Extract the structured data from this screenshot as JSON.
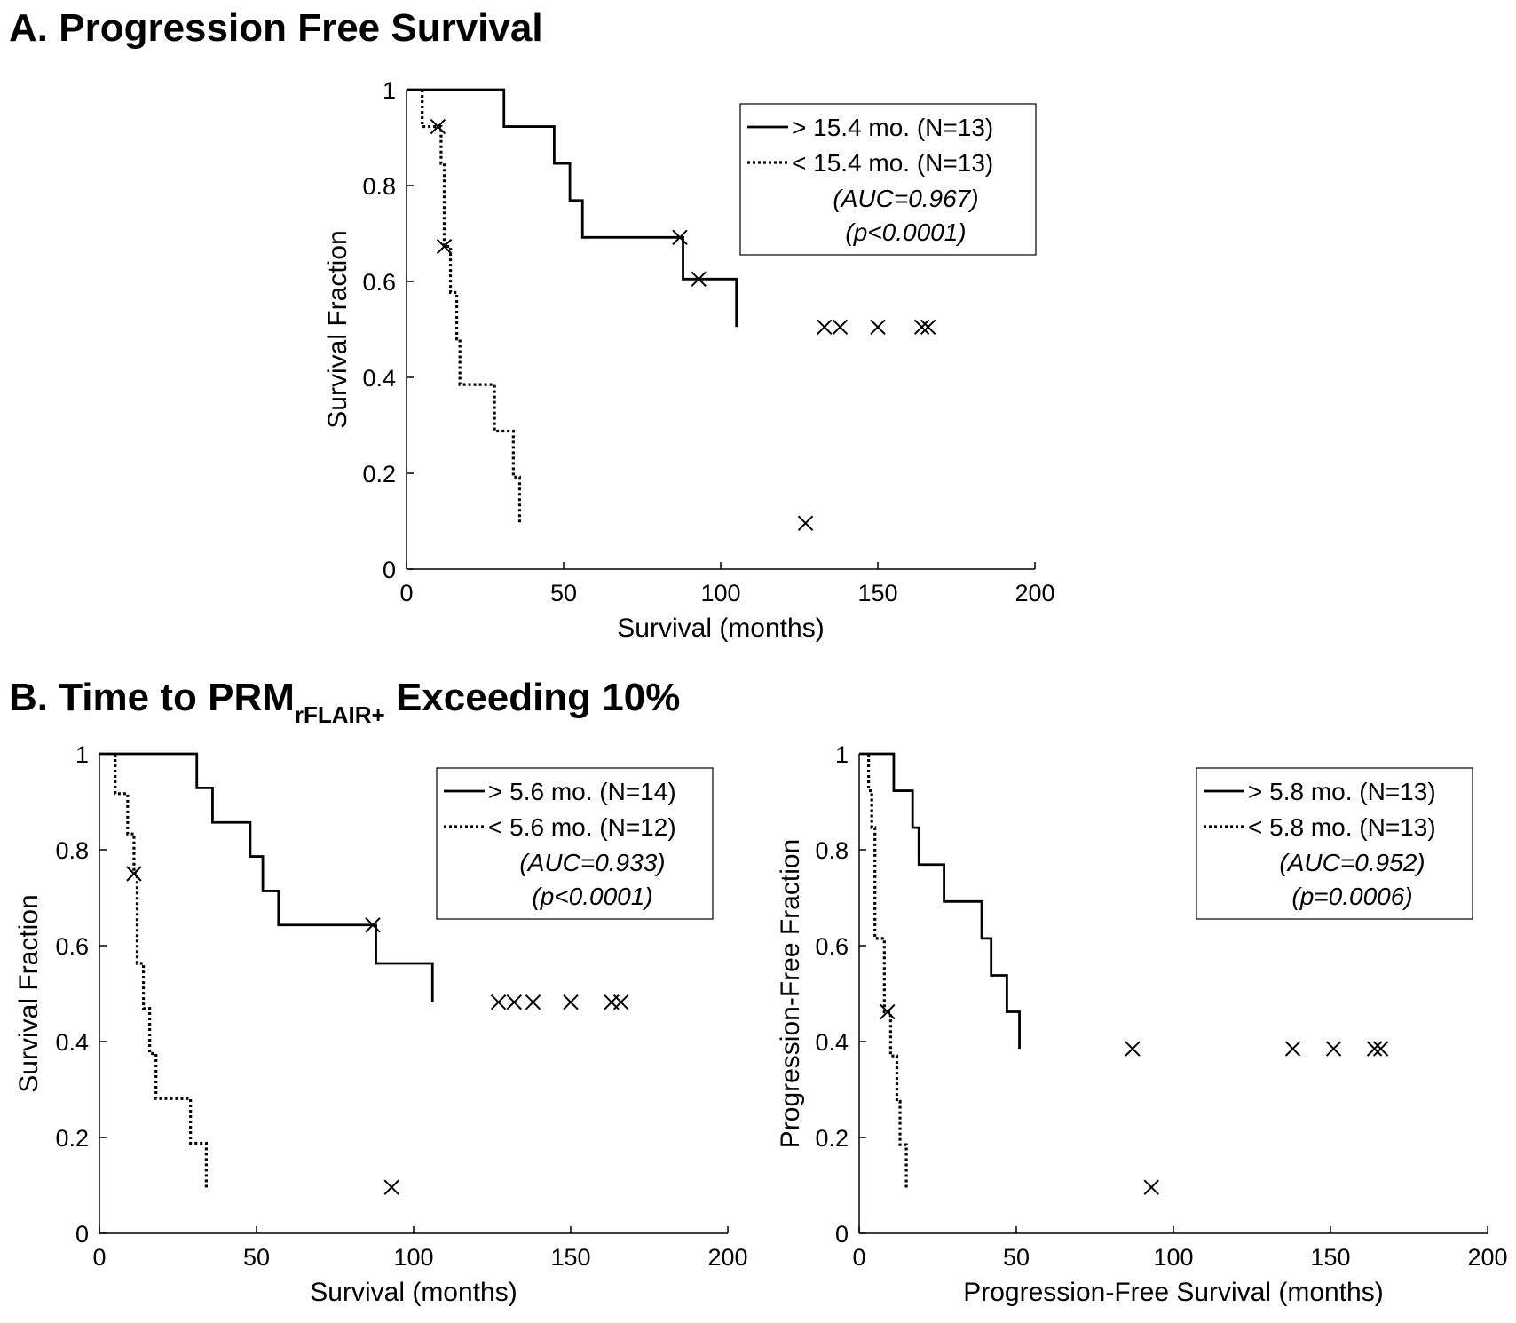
{
  "figure": {
    "panel_a_title": "A. Progression Free Survival",
    "panel_b_title_main": "B. Time to PRM",
    "panel_b_title_sub": "rFLAIR+",
    "panel_b_title_end": " Exceeding 10%"
  },
  "chart_data": [
    {
      "id": "A",
      "type": "line",
      "subtype": "kaplan-meier",
      "title": "A. Progression Free Survival",
      "xlabel": "Survival (months)",
      "ylabel": "Survival Fraction",
      "xlim": [
        0,
        200
      ],
      "ylim": [
        0,
        1
      ],
      "xticks": [
        "0",
        "50",
        "100",
        "150",
        "200"
      ],
      "yticks": [
        "0",
        "0.2",
        "0.4",
        "0.6",
        "0.8",
        "1"
      ],
      "legend_position": "top-right",
      "annotations": [
        "(AUC=0.967)",
        "(p<0.0001)"
      ],
      "series": [
        {
          "name": "> 15.4 mo. (N=13)",
          "style": "solid",
          "steps": [
            [
              0,
              1.0
            ],
            [
              31,
              0.923
            ],
            [
              47,
              0.846
            ],
            [
              52,
              0.769
            ],
            [
              56,
              0.692
            ],
            [
              88,
              0.692
            ],
            [
              88,
              0.605
            ],
            [
              105,
              0.605
            ],
            [
              105,
              0.505
            ]
          ],
          "censored": [
            [
              87,
              0.692
            ],
            [
              93,
              0.605
            ],
            [
              127,
              0.096
            ],
            [
              133,
              0.505
            ],
            [
              138,
              0.505
            ],
            [
              150,
              0.505
            ],
            [
              164,
              0.505
            ],
            [
              166,
              0.505
            ]
          ]
        },
        {
          "name": "< 15.4 mo. (N=13)",
          "style": "dotted",
          "steps": [
            [
              5,
              1.0
            ],
            [
              5,
              0.923
            ],
            [
              11,
              0.923
            ],
            [
              11,
              0.846
            ],
            [
              12,
              0.846
            ],
            [
              12,
              0.673
            ],
            [
              14,
              0.673
            ],
            [
              14,
              0.577
            ],
            [
              16,
              0.577
            ],
            [
              16,
              0.48
            ],
            [
              17,
              0.48
            ],
            [
              17,
              0.385
            ],
            [
              28,
              0.385
            ],
            [
              28,
              0.288
            ],
            [
              34,
              0.288
            ],
            [
              34,
              0.192
            ],
            [
              36,
              0.192
            ],
            [
              36,
              0.096
            ]
          ],
          "censored": [
            [
              10,
              0.923
            ],
            [
              12,
              0.673
            ]
          ]
        }
      ]
    },
    {
      "id": "B-left",
      "type": "line",
      "subtype": "kaplan-meier",
      "title": "B. Time to PRM rFLAIR+ Exceeding 10%",
      "xlabel": "Survival (months)",
      "ylabel": "Survival Fraction",
      "xlim": [
        0,
        200
      ],
      "ylim": [
        0,
        1
      ],
      "xticks": [
        "0",
        "50",
        "100",
        "150",
        "200"
      ],
      "yticks": [
        "0",
        "0.2",
        "0.4",
        "0.6",
        "0.8",
        "1"
      ],
      "legend_position": "top-right",
      "annotations": [
        "(AUC=0.933)",
        "(p<0.0001)"
      ],
      "series": [
        {
          "name": "> 5.6 mo. (N=14)",
          "style": "solid",
          "steps": [
            [
              0,
              1.0
            ],
            [
              31,
              0.929
            ],
            [
              36,
              0.857
            ],
            [
              48,
              0.786
            ],
            [
              52,
              0.714
            ],
            [
              57,
              0.643
            ],
            [
              88,
              0.643
            ],
            [
              88,
              0.563
            ],
            [
              106,
              0.563
            ],
            [
              106,
              0.482
            ]
          ],
          "censored": [
            [
              87,
              0.643
            ],
            [
              93,
              0.096
            ],
            [
              127,
              0.482
            ],
            [
              132,
              0.482
            ],
            [
              138,
              0.482
            ],
            [
              150,
              0.482
            ],
            [
              163,
              0.482
            ],
            [
              166,
              0.482
            ]
          ]
        },
        {
          "name": "< 5.6 mo. (N=12)",
          "style": "dotted",
          "steps": [
            [
              5,
              1.0
            ],
            [
              5,
              0.917
            ],
            [
              9,
              0.917
            ],
            [
              9,
              0.833
            ],
            [
              11,
              0.833
            ],
            [
              11,
              0.75
            ],
            [
              12,
              0.75
            ],
            [
              12,
              0.563
            ],
            [
              14,
              0.563
            ],
            [
              14,
              0.469
            ],
            [
              16,
              0.469
            ],
            [
              16,
              0.375
            ],
            [
              18,
              0.375
            ],
            [
              18,
              0.281
            ],
            [
              29,
              0.281
            ],
            [
              29,
              0.188
            ],
            [
              34,
              0.188
            ],
            [
              34,
              0.094
            ]
          ],
          "censored": [
            [
              11,
              0.75
            ]
          ]
        }
      ]
    },
    {
      "id": "B-right",
      "type": "line",
      "subtype": "kaplan-meier",
      "title": "B. Time to PRM rFLAIR+ Exceeding 10%",
      "xlabel": "Progression-Free Survival (months)",
      "ylabel": "Progression-Free Fraction",
      "xlim": [
        0,
        200
      ],
      "ylim": [
        0,
        1
      ],
      "xticks": [
        "0",
        "50",
        "100",
        "150",
        "200"
      ],
      "yticks": [
        "0",
        "0.2",
        "0.4",
        "0.6",
        "0.8",
        "1"
      ],
      "legend_position": "top-right",
      "annotations": [
        "(AUC=0.952)",
        "(p=0.0006)"
      ],
      "series": [
        {
          "name": "> 5.8 mo. (N=13)",
          "style": "solid",
          "steps": [
            [
              0,
              1.0
            ],
            [
              11,
              0.923
            ],
            [
              17,
              0.846
            ],
            [
              19,
              0.769
            ],
            [
              27,
              0.692
            ],
            [
              39,
              0.615
            ],
            [
              42,
              0.538
            ],
            [
              47,
              0.462
            ],
            [
              51,
              0.462
            ],
            [
              51,
              0.385
            ]
          ],
          "censored": [
            [
              87,
              0.385
            ],
            [
              93,
              0.096
            ],
            [
              138,
              0.385
            ],
            [
              151,
              0.385
            ],
            [
              164,
              0.385
            ],
            [
              166,
              0.385
            ]
          ]
        },
        {
          "name": "< 5.8 mo. (N=13)",
          "style": "dotted",
          "steps": [
            [
              3,
              1.0
            ],
            [
              3,
              0.923
            ],
            [
              4,
              0.923
            ],
            [
              4,
              0.846
            ],
            [
              5,
              0.846
            ],
            [
              5,
              0.615
            ],
            [
              8,
              0.615
            ],
            [
              8,
              0.462
            ],
            [
              10,
              0.462
            ],
            [
              10,
              0.37
            ],
            [
              12,
              0.37
            ],
            [
              12,
              0.275
            ],
            [
              13,
              0.275
            ],
            [
              13,
              0.185
            ],
            [
              15,
              0.185
            ],
            [
              15,
              0.092
            ]
          ],
          "censored": [
            [
              9,
              0.462
            ]
          ]
        }
      ]
    }
  ]
}
